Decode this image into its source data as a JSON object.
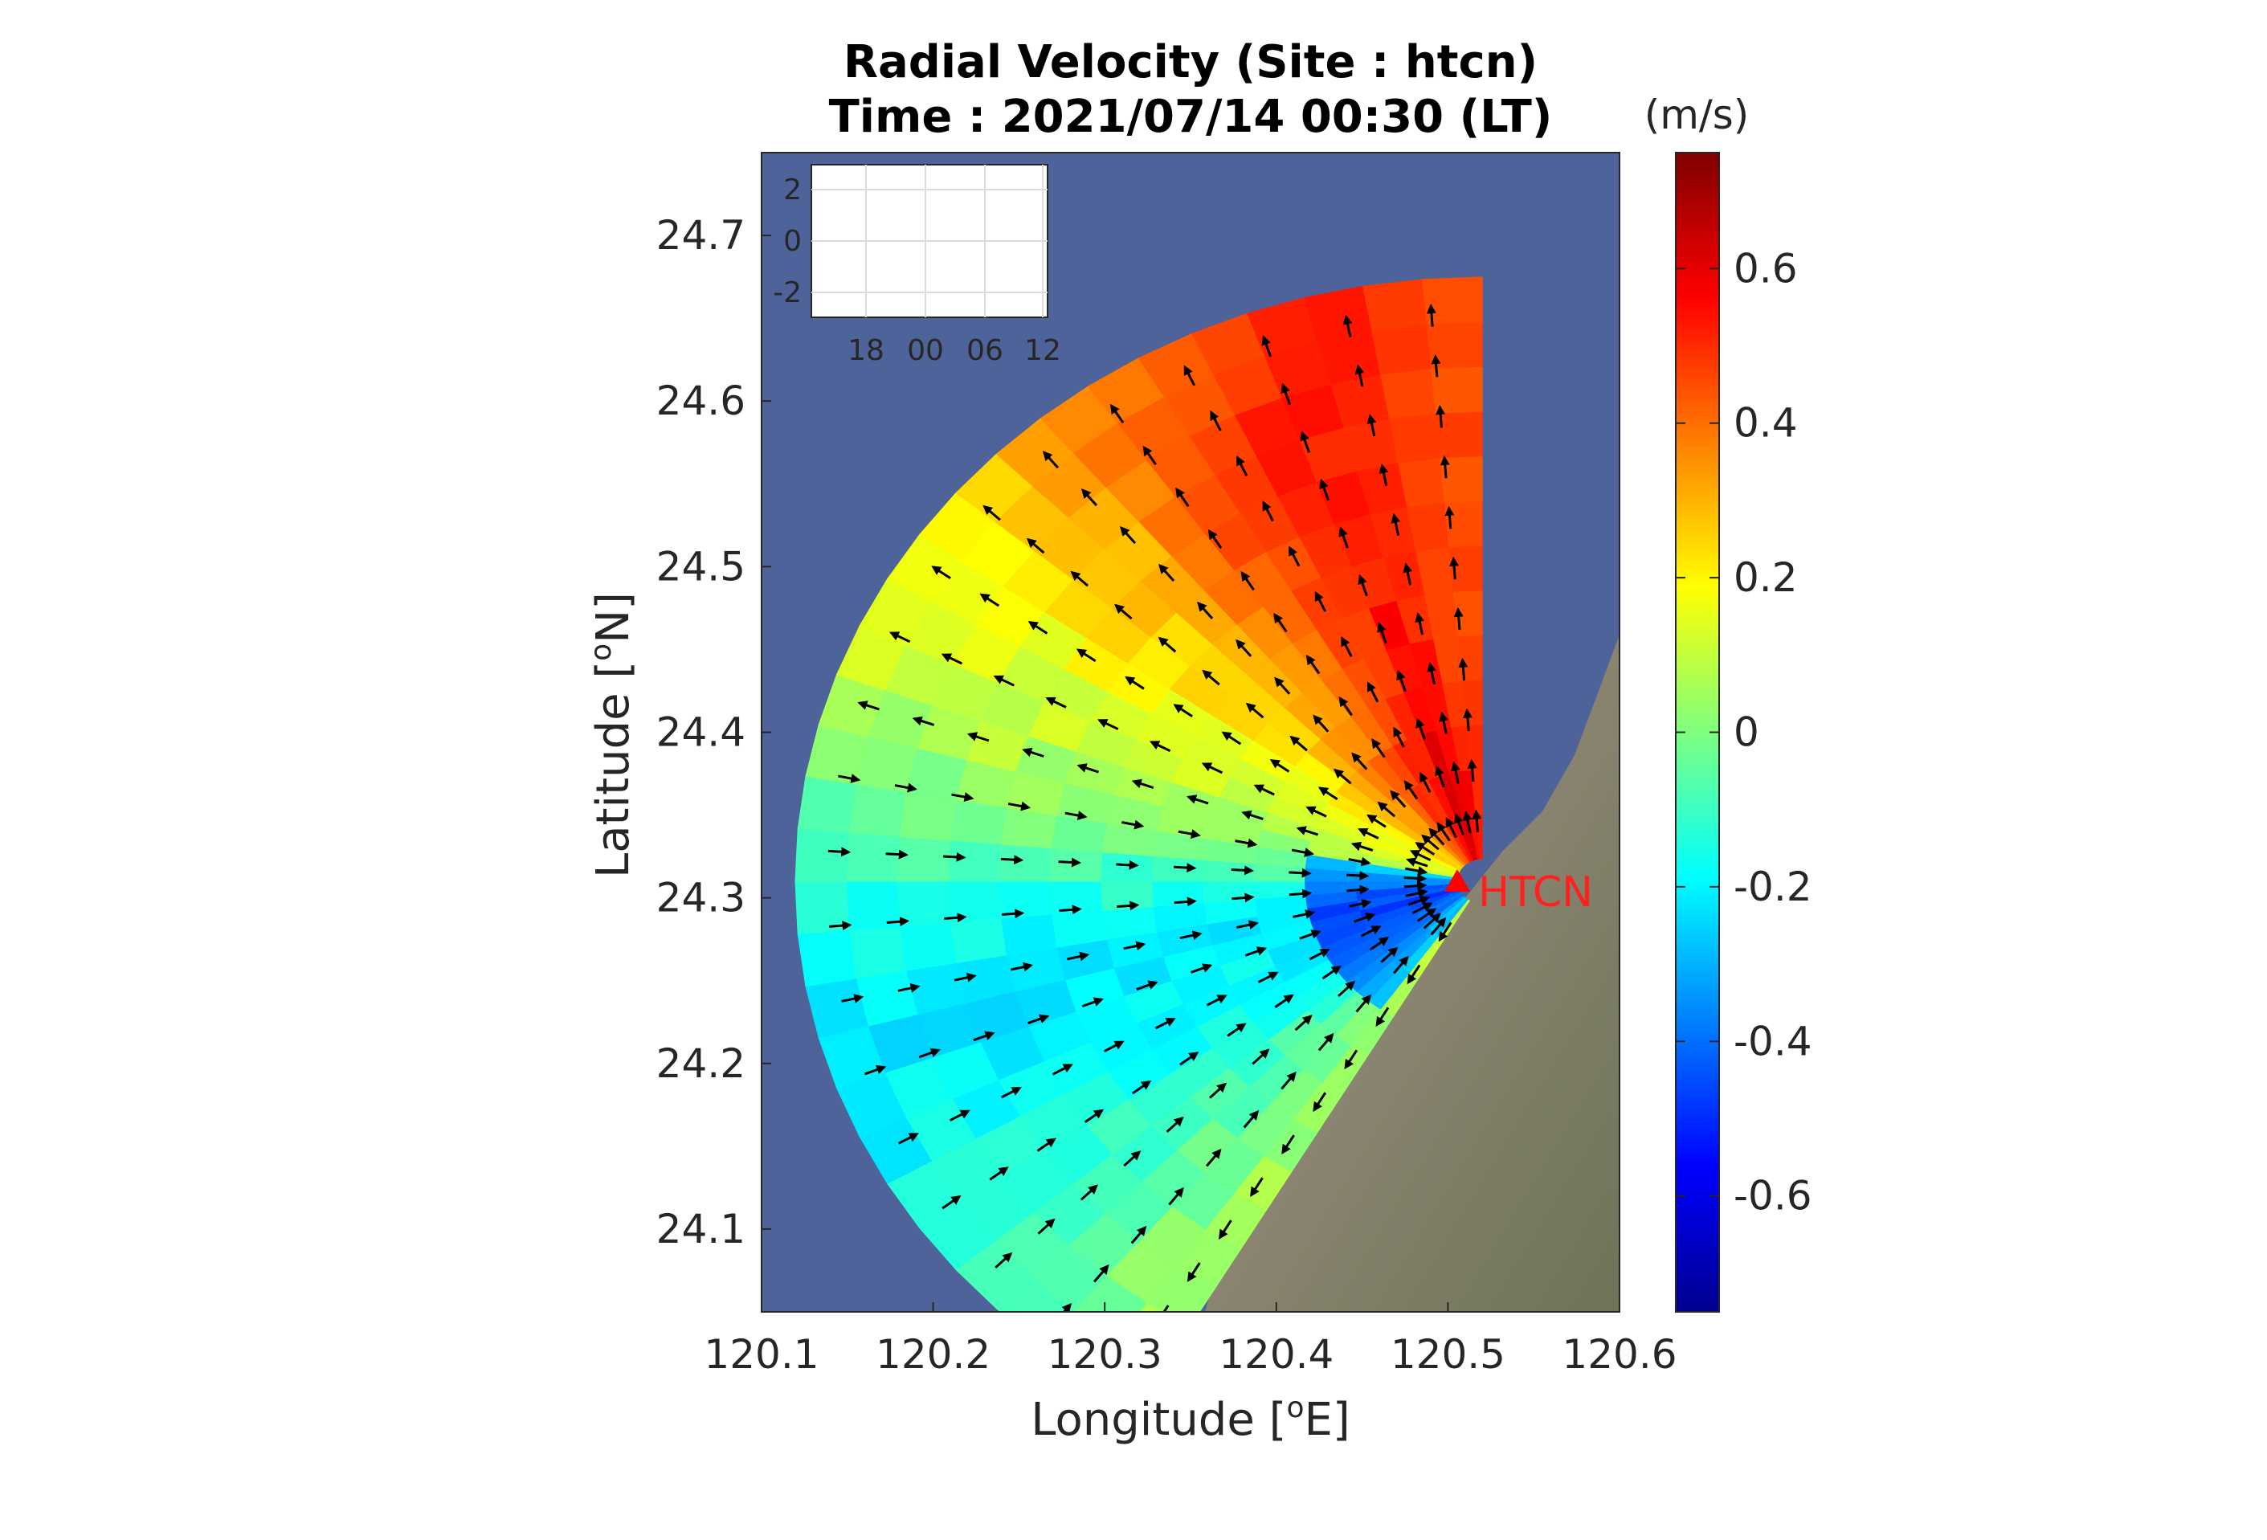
{
  "chart_data": {
    "type": "heatmap",
    "title_line1": "Radial Velocity (Site : htcn)",
    "title_line2": "Time : 2021/07/14 00:30 (LT)",
    "xlabel_text": "Longitude [",
    "xlabel_sup": "o",
    "xlabel_end": "E]",
    "ylabel_text": "Latitude [",
    "ylabel_sup": "o",
    "ylabel_end": "N]",
    "xlim": [
      120.1,
      120.6
    ],
    "ylim": [
      24.05,
      24.75
    ],
    "x_ticks": [
      {
        "value": 120.1,
        "label": "120.1"
      },
      {
        "value": 120.2,
        "label": "120.2"
      },
      {
        "value": 120.3,
        "label": "120.3"
      },
      {
        "value": 120.4,
        "label": "120.4"
      },
      {
        "value": 120.5,
        "label": "120.5"
      },
      {
        "value": 120.6,
        "label": "120.6"
      }
    ],
    "y_ticks": [
      {
        "value": 24.1,
        "label": "24.1"
      },
      {
        "value": 24.2,
        "label": "24.2"
      },
      {
        "value": 24.3,
        "label": "24.3"
      },
      {
        "value": 24.4,
        "label": "24.4"
      },
      {
        "value": 24.5,
        "label": "24.5"
      },
      {
        "value": 24.6,
        "label": "24.6"
      },
      {
        "value": 24.7,
        "label": "24.7"
      }
    ],
    "colorbar": {
      "unit": "(m/s)",
      "range": [
        -0.75,
        0.75
      ],
      "colormap": "jet",
      "ticks": [
        {
          "value": 0.6,
          "label": "0.6"
        },
        {
          "value": 0.4,
          "label": "0.4"
        },
        {
          "value": 0.2,
          "label": "0.2"
        },
        {
          "value": 0,
          "label": "0"
        },
        {
          "value": -0.2,
          "label": "-0.2"
        },
        {
          "value": -0.4,
          "label": "-0.4"
        },
        {
          "value": -0.6,
          "label": "-0.6"
        }
      ]
    },
    "site": {
      "name": "HTCN",
      "lon": 120.52,
      "lat": 24.31,
      "color": "#ff0000"
    },
    "sector": {
      "bearing_from_deg": 210,
      "bearing_to_deg": 360,
      "max_range_km": 40
    },
    "radial_velocity_profile": [
      {
        "bearing_deg": 212,
        "v": 0.05
      },
      {
        "bearing_deg": 225,
        "v": -0.08
      },
      {
        "bearing_deg": 240,
        "v": -0.18
      },
      {
        "bearing_deg": 255,
        "v": -0.22
      },
      {
        "bearing_deg": 270,
        "v": -0.12
      },
      {
        "bearing_deg": 285,
        "v": 0.05
      },
      {
        "bearing_deg": 300,
        "v": 0.16
      },
      {
        "bearing_deg": 315,
        "v": 0.28
      },
      {
        "bearing_deg": 330,
        "v": 0.45
      },
      {
        "bearing_deg": 345,
        "v": 0.55
      },
      {
        "bearing_deg": 358,
        "v": 0.45
      }
    ],
    "inset": {
      "y_ticks": [
        {
          "value": 2,
          "label": "2"
        },
        {
          "value": 0,
          "label": "0"
        },
        {
          "value": -2,
          "label": "-2"
        }
      ],
      "x_ticks": [
        "18",
        "00",
        "06",
        "12"
      ]
    },
    "background_colors": {
      "sea": "#4d6399",
      "land": "#7d8066"
    }
  }
}
